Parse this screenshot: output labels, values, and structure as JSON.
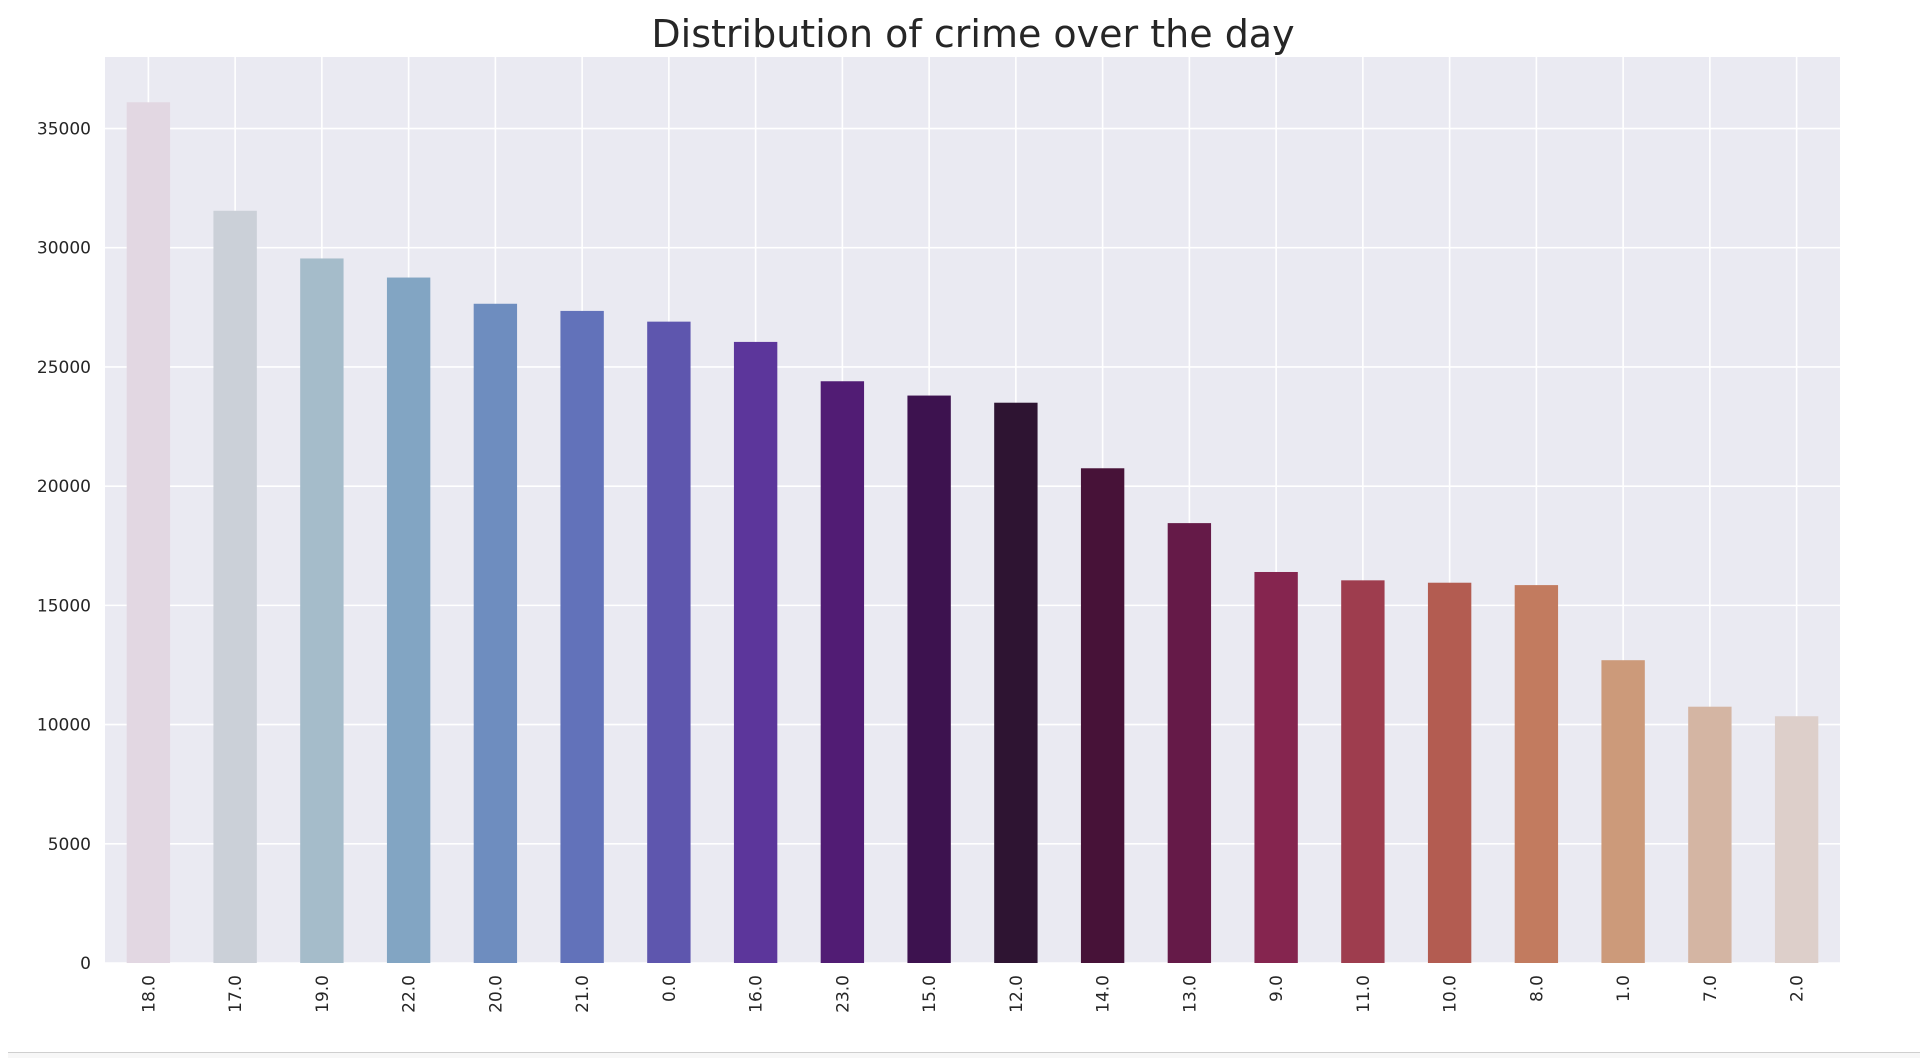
{
  "chart_data": {
    "type": "bar",
    "title": "Distribution of crime over the day",
    "xlabel": "",
    "ylabel": "",
    "categories": [
      "18.0",
      "17.0",
      "19.0",
      "22.0",
      "20.0",
      "21.0",
      "0.0",
      "16.0",
      "23.0",
      "15.0",
      "12.0",
      "14.0",
      "13.0",
      "9.0",
      "11.0",
      "10.0",
      "8.0",
      "1.0",
      "7.0",
      "2.0"
    ],
    "values": [
      36100,
      31550,
      29550,
      28750,
      27650,
      27350,
      26900,
      26050,
      24400,
      23800,
      23500,
      20750,
      18450,
      16400,
      16050,
      15950,
      15850,
      12700,
      10750,
      10350
    ],
    "colors": [
      "#e2d7e2",
      "#cbd0d8",
      "#a5bcca",
      "#82a5c3",
      "#6e8dbf",
      "#6272ba",
      "#5e56ae",
      "#5c369b",
      "#511c74",
      "#3d124f",
      "#2e1432",
      "#471238",
      "#651a48",
      "#85254f",
      "#9e3d4e",
      "#b35c51",
      "#c27b5f",
      "#cc9a7a",
      "#d4b5a3",
      "#ddcfca"
    ],
    "ylim": [
      0,
      38000
    ],
    "yticks": [
      0,
      5000,
      10000,
      15000,
      20000,
      25000,
      30000,
      35000
    ],
    "ytick_labels": [
      "0",
      "5000",
      "10000",
      "15000",
      "20000",
      "25000",
      "30000",
      "35000"
    ],
    "grid": true,
    "legend": "none",
    "style": {
      "axes_background": "#eaeaf2",
      "grid_color": "#ffffff",
      "text_color": "#262626"
    }
  }
}
